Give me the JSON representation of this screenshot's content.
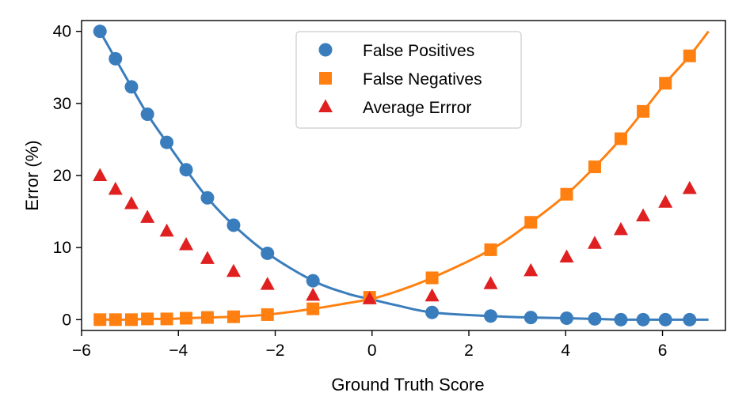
{
  "chart_data": {
    "type": "scatter",
    "xlabel": "Ground Truth Score",
    "ylabel": "Error (%)",
    "xlim": [
      -6.0,
      7.3
    ],
    "ylim": [
      -1.5,
      41.5
    ],
    "xticks": [
      -6,
      -4,
      -2,
      0,
      2,
      4,
      6
    ],
    "yticks": [
      0,
      10,
      20,
      30,
      40
    ],
    "xtick_labels": [
      "−6",
      "−4",
      "−2",
      "0",
      "2",
      "4",
      "6"
    ],
    "ytick_labels": [
      "0",
      "10",
      "20",
      "30",
      "40"
    ],
    "legend_position": "top-center",
    "series": [
      {
        "name": "False Positives",
        "marker": "circle",
        "color": "#3a7dbd",
        "x": [
          -5.62,
          -5.3,
          -4.97,
          -4.64,
          -4.24,
          -3.84,
          -3.4,
          -2.86,
          -2.16,
          -1.22,
          1.24,
          2.45,
          3.28,
          4.02,
          4.6,
          5.14,
          5.6,
          6.06,
          6.56
        ],
        "y": [
          40.0,
          36.2,
          32.3,
          28.5,
          24.6,
          20.8,
          16.9,
          13.1,
          9.2,
          5.4,
          1.0,
          0.5,
          0.3,
          0.2,
          0.1,
          0.0,
          0.0,
          0.0,
          0.0
        ],
        "curve_x": [
          -5.62,
          -5.3,
          -4.97,
          -4.64,
          -4.24,
          -3.84,
          -3.4,
          -2.86,
          -2.16,
          -1.22,
          -0.5,
          0.0,
          0.5,
          1.24,
          2.45,
          3.28,
          4.02,
          4.6,
          5.14,
          5.6,
          6.06,
          6.56,
          6.95
        ],
        "curve_y": [
          40.0,
          36.2,
          32.3,
          28.5,
          24.6,
          20.8,
          16.9,
          13.1,
          9.2,
          5.4,
          3.6,
          2.8,
          2.0,
          1.0,
          0.5,
          0.3,
          0.2,
          0.1,
          0.0,
          0.0,
          0.0,
          0.0,
          0.0
        ]
      },
      {
        "name": "False Negatives",
        "marker": "square",
        "color": "#ff8010",
        "x": [
          -5.62,
          -5.3,
          -4.97,
          -4.64,
          -4.24,
          -3.84,
          -3.4,
          -2.86,
          -2.16,
          -1.22,
          -0.05,
          1.24,
          2.45,
          3.28,
          4.02,
          4.6,
          5.14,
          5.6,
          6.06,
          6.56
        ],
        "y": [
          0.0,
          0.0,
          0.0,
          0.1,
          0.1,
          0.2,
          0.3,
          0.4,
          0.7,
          1.5,
          3.1,
          5.8,
          9.7,
          13.5,
          17.4,
          21.2,
          25.1,
          28.9,
          32.8,
          36.6
        ],
        "curve_x": [
          -5.62,
          -5.3,
          -4.97,
          -4.64,
          -4.24,
          -3.84,
          -3.4,
          -2.86,
          -2.16,
          -1.22,
          -0.5,
          0.0,
          0.5,
          1.24,
          2.45,
          3.28,
          4.02,
          4.6,
          5.14,
          5.6,
          6.06,
          6.56,
          6.95
        ],
        "curve_y": [
          0.0,
          0.0,
          0.0,
          0.1,
          0.1,
          0.2,
          0.3,
          0.4,
          0.7,
          1.5,
          2.3,
          2.9,
          3.9,
          5.8,
          9.7,
          13.5,
          17.4,
          21.2,
          25.1,
          28.9,
          32.8,
          36.6,
          40.0
        ]
      },
      {
        "name": "Average Errror",
        "marker": "triangle",
        "color": "#e02020",
        "x": [
          -5.62,
          -5.3,
          -4.97,
          -4.64,
          -4.24,
          -3.84,
          -3.4,
          -2.86,
          -2.16,
          -1.22,
          -0.05,
          1.24,
          2.45,
          3.28,
          4.02,
          4.6,
          5.14,
          5.6,
          6.06,
          6.56
        ],
        "y": [
          20.0,
          18.1,
          16.1,
          14.2,
          12.3,
          10.4,
          8.5,
          6.7,
          4.9,
          3.4,
          2.9,
          3.3,
          5.0,
          6.8,
          8.7,
          10.6,
          12.5,
          14.4,
          16.3,
          18.2
        ]
      }
    ]
  }
}
